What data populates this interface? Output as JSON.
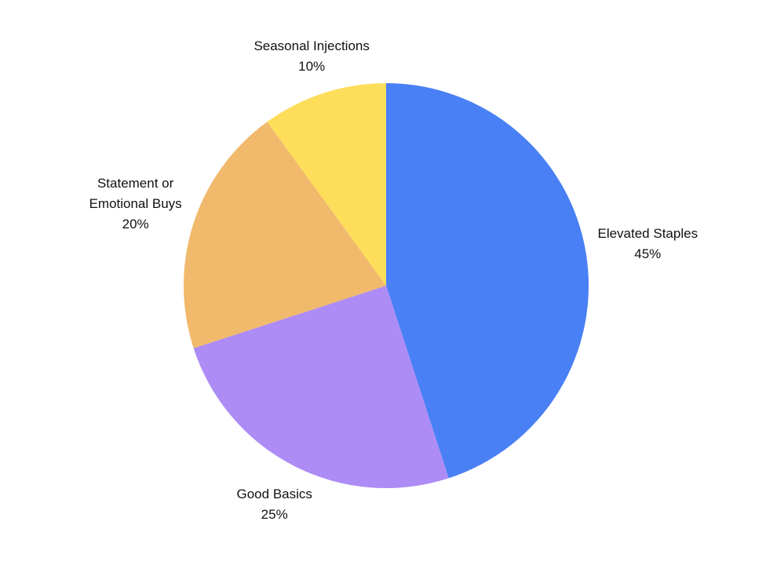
{
  "chart_data": {
    "type": "pie",
    "categories": [
      "Elevated Staples",
      "Good Basics",
      "Statement or Emotional Buys",
      "Seasonal Injections"
    ],
    "values": [
      45,
      25,
      20,
      10
    ],
    "value_labels": [
      "45%",
      "25%",
      "20%",
      "10%"
    ],
    "colors": [
      "#4a80f5",
      "#ad8cf5",
      "#f0b96c",
      "#fedd5a"
    ]
  }
}
